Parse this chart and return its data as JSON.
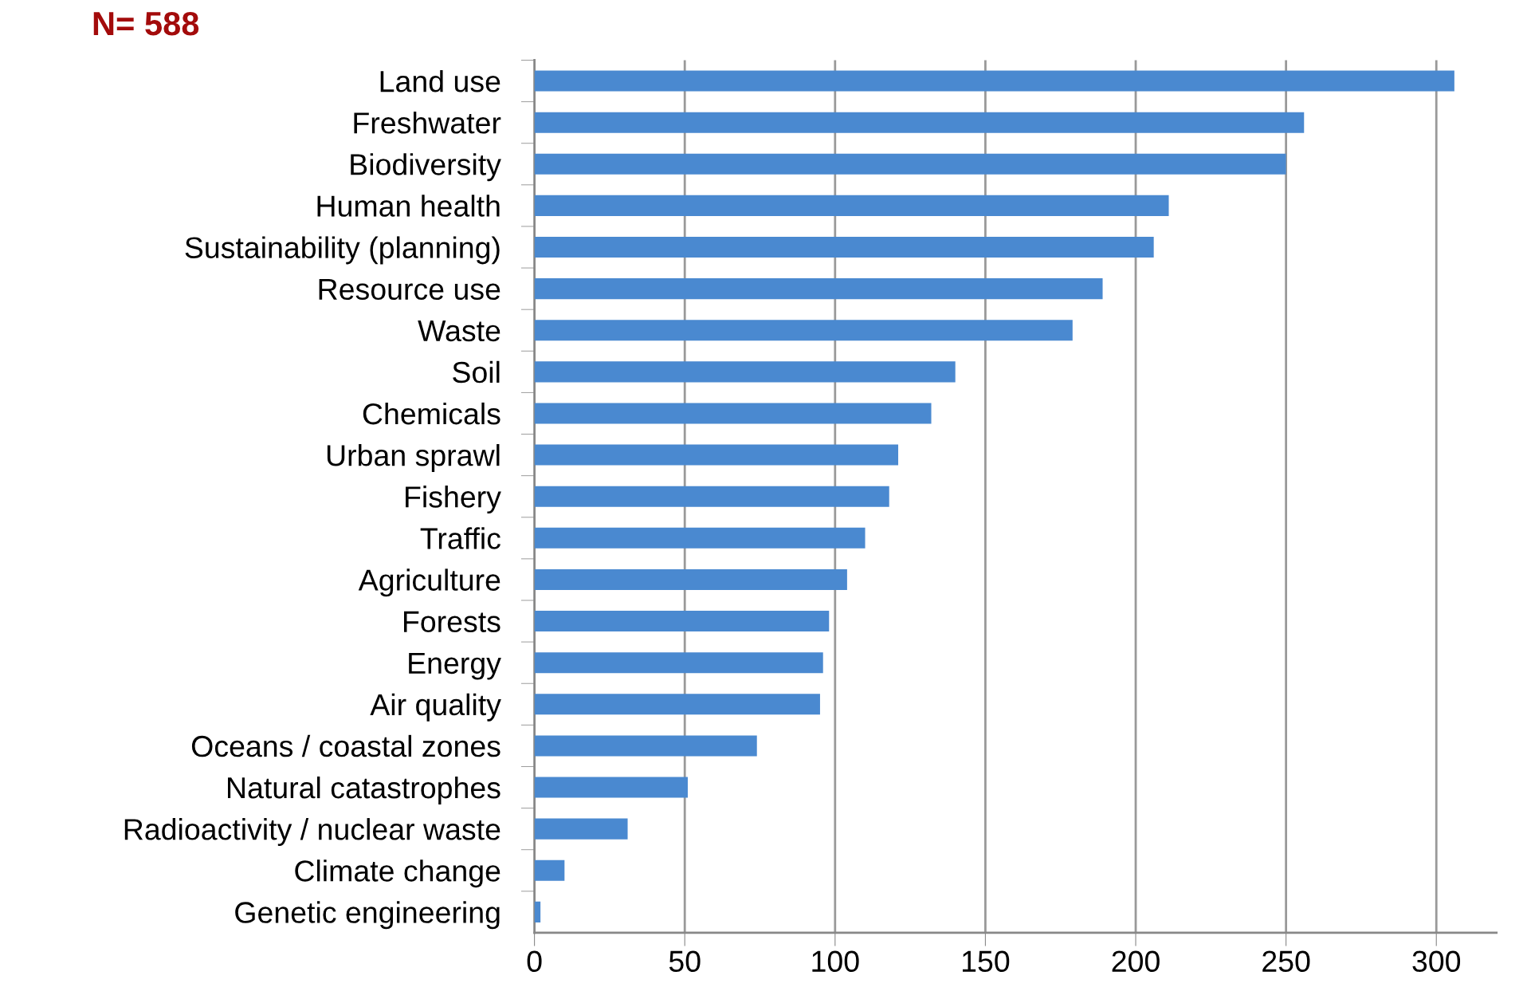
{
  "chart_data": {
    "type": "bar",
    "orientation": "horizontal",
    "title": "N= 588",
    "categories": [
      "Land use",
      "Freshwater",
      "Biodiversity",
      "Human health",
      "Sustainability (planning)",
      "Resource use",
      "Waste",
      "Soil",
      "Chemicals",
      "Urban sprawl",
      "Fishery",
      "Traffic",
      "Agriculture",
      "Forests",
      "Energy",
      "Air quality",
      "Oceans / coastal zones",
      "Natural catastrophes",
      "Radioactivity / nuclear waste",
      "Climate change",
      "Genetic engineering"
    ],
    "values": [
      306,
      256,
      250,
      211,
      206,
      189,
      179,
      140,
      132,
      121,
      118,
      110,
      104,
      98,
      96,
      95,
      74,
      51,
      31,
      10,
      2
    ],
    "color": "#4a89d0",
    "xlim": [
      0,
      320
    ],
    "xticks": [
      0,
      50,
      100,
      150,
      200,
      250,
      300
    ],
    "grid": "x",
    "legend": false
  }
}
